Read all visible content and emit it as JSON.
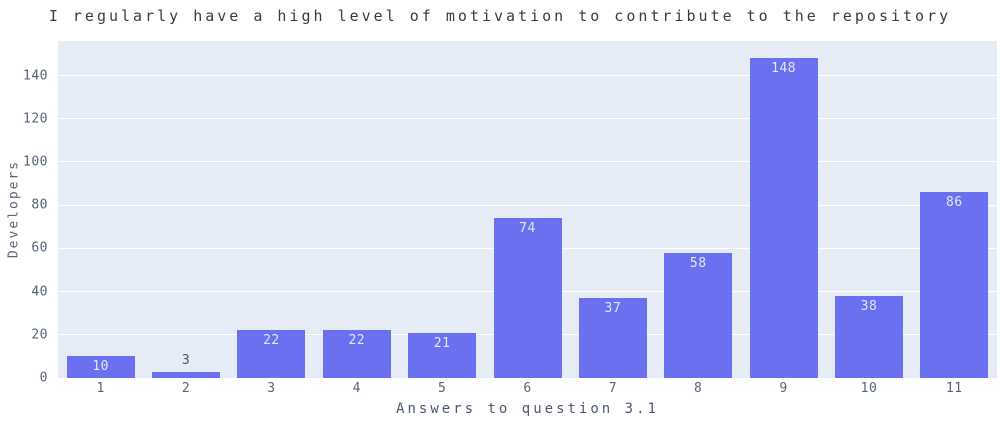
{
  "chart_data": {
    "type": "bar",
    "title": "I regularly have a high level of motivation to contribute to the repository",
    "xlabel": "Answers to question 3.1",
    "ylabel": "Developers",
    "categories": [
      "1",
      "2",
      "3",
      "4",
      "5",
      "6",
      "7",
      "8",
      "9",
      "10",
      "11"
    ],
    "values": [
      10,
      3,
      22,
      22,
      21,
      74,
      37,
      58,
      148,
      38,
      86
    ],
    "yticks": [
      0,
      20,
      40,
      60,
      80,
      100,
      120,
      140
    ],
    "ylim": [
      0,
      156
    ],
    "grid": true,
    "legend": "none",
    "colors": {
      "bar_fill": "#6a70f0",
      "plot_background": "#e5ecf6",
      "gridline": "#ffffff",
      "label_inside": "#e4e6f5",
      "label_outside": "#46526b",
      "tick_text": "#56637a",
      "title_text": "#3b3b3b"
    }
  }
}
